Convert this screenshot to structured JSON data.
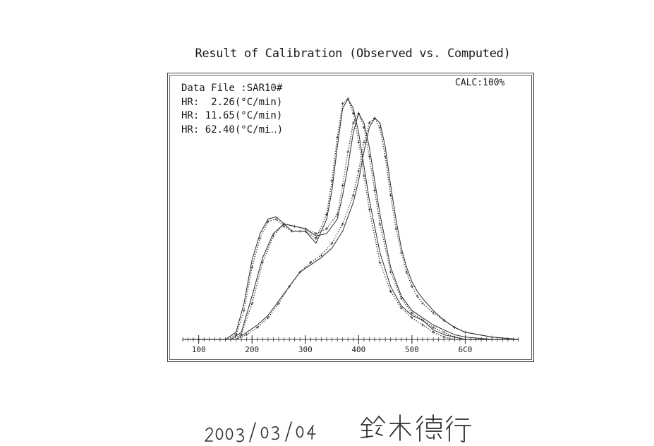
{
  "chart_data": {
    "type": "line",
    "title": "Result of Calibration (Observed vs. Computed)",
    "annotations": {
      "data_file": "Data File :SAR10#",
      "heating_rates": [
        "HR:  2.26(°C/min)",
        "HR: 11.65(°C/min)",
        "HR: 62.40(°C/mi‥)"
      ],
      "calc": "CALC:100%"
    },
    "xlabel": "",
    "ylabel": "",
    "xlim": [
      70,
      700
    ],
    "ylim": [
      0,
      1
    ],
    "x_ticks": [
      "100",
      "200",
      "300",
      "400",
      "500",
      "6C0"
    ],
    "grid": false,
    "series": [
      {
        "style": "solid",
        "x": [
          70,
          150,
          170,
          185,
          200,
          215,
          230,
          245,
          260,
          275,
          290,
          300,
          320,
          340,
          350,
          360,
          370,
          380,
          390,
          400,
          410,
          420,
          440,
          460,
          480,
          500,
          520,
          540,
          560,
          580,
          600,
          650,
          700
        ],
        "y": [
          0,
          0,
          0.03,
          0.15,
          0.33,
          0.44,
          0.5,
          0.51,
          0.48,
          0.45,
          0.45,
          0.45,
          0.4,
          0.5,
          0.62,
          0.8,
          0.96,
          1.0,
          0.96,
          0.86,
          0.72,
          0.58,
          0.36,
          0.22,
          0.14,
          0.1,
          0.08,
          0.04,
          0.02,
          0.01,
          0,
          0,
          0
        ]
      },
      {
        "style": "dotted",
        "x": [
          70,
          150,
          170,
          185,
          200,
          215,
          230,
          245,
          260,
          275,
          290,
          300,
          320,
          340,
          350,
          360,
          370,
          380,
          390,
          400,
          410,
          420,
          440,
          460,
          480,
          500,
          520,
          540,
          560,
          580,
          600,
          650,
          700
        ],
        "y": [
          0,
          0,
          0.02,
          0.12,
          0.3,
          0.42,
          0.49,
          0.5,
          0.47,
          0.45,
          0.45,
          0.45,
          0.42,
          0.52,
          0.66,
          0.84,
          0.98,
          1.0,
          0.94,
          0.82,
          0.68,
          0.54,
          0.32,
          0.2,
          0.13,
          0.09,
          0.06,
          0.03,
          0.01,
          0,
          0,
          0,
          0
        ]
      },
      {
        "style": "solid",
        "x": [
          70,
          160,
          180,
          200,
          220,
          240,
          260,
          280,
          300,
          320,
          340,
          360,
          370,
          380,
          390,
          400,
          410,
          420,
          430,
          440,
          460,
          480,
          500,
          520,
          540,
          560,
          580,
          600,
          650,
          700
        ],
        "y": [
          0,
          0,
          0.03,
          0.18,
          0.34,
          0.44,
          0.48,
          0.47,
          0.46,
          0.43,
          0.44,
          0.5,
          0.6,
          0.72,
          0.86,
          0.94,
          0.9,
          0.8,
          0.66,
          0.52,
          0.3,
          0.18,
          0.12,
          0.09,
          0.06,
          0.04,
          0.02,
          0.01,
          0,
          0
        ]
      },
      {
        "style": "dotted",
        "x": [
          70,
          160,
          180,
          200,
          220,
          240,
          260,
          280,
          300,
          320,
          340,
          360,
          370,
          380,
          390,
          400,
          410,
          420,
          430,
          440,
          460,
          480,
          500,
          520,
          540,
          560,
          580,
          600,
          650,
          700
        ],
        "y": [
          0,
          0,
          0.02,
          0.15,
          0.32,
          0.43,
          0.48,
          0.47,
          0.46,
          0.44,
          0.46,
          0.52,
          0.64,
          0.78,
          0.9,
          0.94,
          0.88,
          0.76,
          0.62,
          0.48,
          0.28,
          0.17,
          0.11,
          0.08,
          0.05,
          0.03,
          0.01,
          0,
          0,
          0
        ]
      },
      {
        "style": "solid",
        "x": [
          70,
          170,
          190,
          210,
          230,
          250,
          270,
          290,
          310,
          330,
          350,
          370,
          390,
          400,
          410,
          420,
          430,
          440,
          450,
          460,
          470,
          480,
          490,
          500,
          510,
          520,
          540,
          560,
          580,
          600,
          650,
          700
        ],
        "y": [
          0,
          0,
          0.03,
          0.06,
          0.1,
          0.16,
          0.22,
          0.28,
          0.31,
          0.34,
          0.38,
          0.45,
          0.57,
          0.66,
          0.78,
          0.88,
          0.92,
          0.9,
          0.8,
          0.64,
          0.5,
          0.38,
          0.3,
          0.24,
          0.2,
          0.17,
          0.12,
          0.08,
          0.05,
          0.03,
          0.01,
          0
        ]
      },
      {
        "style": "dotted",
        "x": [
          70,
          170,
          190,
          210,
          230,
          250,
          270,
          290,
          310,
          330,
          350,
          370,
          390,
          400,
          410,
          420,
          430,
          440,
          450,
          460,
          470,
          480,
          490,
          500,
          510,
          520,
          540,
          560,
          580,
          600,
          650,
          700
        ],
        "y": [
          0,
          0,
          0.02,
          0.05,
          0.09,
          0.15,
          0.22,
          0.28,
          0.32,
          0.35,
          0.4,
          0.48,
          0.6,
          0.7,
          0.82,
          0.9,
          0.92,
          0.88,
          0.76,
          0.6,
          0.46,
          0.36,
          0.28,
          0.22,
          0.18,
          0.15,
          0.11,
          0.08,
          0.05,
          0.03,
          0.01,
          0
        ]
      }
    ]
  },
  "signature_text": "2003/03/04 鈴木徳行"
}
